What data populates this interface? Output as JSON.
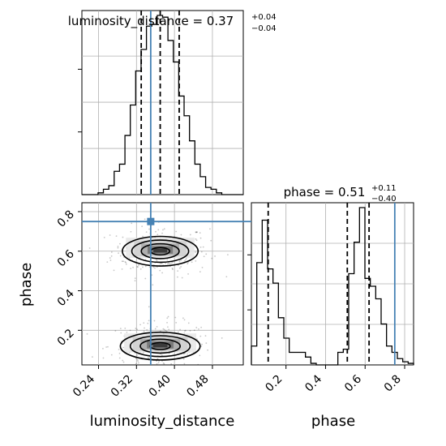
{
  "chart_data": {
    "type": "corner",
    "parameters": [
      "luminosity_distance",
      "phase"
    ],
    "truth_color": "#4682b4",
    "grid": true,
    "marginals": [
      {
        "name": "luminosity_distance",
        "title": {
          "prefix": "luminosity_distance = ",
          "value": "0.37",
          "plus": "+0.04",
          "minus": "−0.04"
        },
        "xlabel": "luminosity_distance",
        "xlim": [
          0.205,
          0.545
        ],
        "xticks": [
          "0.24",
          "0.32",
          "0.40",
          "0.48"
        ],
        "xtick_values": [
          0.24,
          0.32,
          0.4,
          0.48
        ],
        "hist_bins": [
          0.205,
          0.2163,
          0.2277,
          0.239,
          0.2503,
          0.2617,
          0.273,
          0.2843,
          0.2957,
          0.307,
          0.3183,
          0.3297,
          0.341,
          0.3523,
          0.3637,
          0.375,
          0.3863,
          0.3977,
          0.409,
          0.4203,
          0.4317,
          0.443,
          0.4543,
          0.4657,
          0.477,
          0.4883,
          0.4997,
          0.511,
          0.5223,
          0.5337,
          0.545
        ],
        "hist_counts": [
          0,
          0,
          0,
          0.01,
          0.03,
          0.05,
          0.13,
          0.17,
          0.33,
          0.5,
          0.69,
          0.81,
          0.94,
          0.95,
          1.0,
          0.99,
          0.86,
          0.74,
          0.55,
          0.44,
          0.3,
          0.17,
          0.1,
          0.04,
          0.03,
          0.01,
          0,
          0,
          0,
          0
        ],
        "quantiles": [
          0.33,
          0.37,
          0.41
        ],
        "truth": 0.35
      },
      {
        "name": "phase",
        "title": {
          "prefix": "phase = ",
          "value": "0.51",
          "plus": "+0.11",
          "minus": "−0.40"
        },
        "xlabel": "phase",
        "xlim": [
          0.025,
          0.845
        ],
        "xticks": [
          "0.2",
          "0.4",
          "0.6",
          "0.8"
        ],
        "xtick_values": [
          0.2,
          0.4,
          0.6,
          0.8
        ],
        "hist_bins": [
          0.025,
          0.0523,
          0.0797,
          0.107,
          0.1343,
          0.1617,
          0.189,
          0.2163,
          0.2437,
          0.271,
          0.2983,
          0.3257,
          0.353,
          0.3803,
          0.4077,
          0.435,
          0.4623,
          0.4897,
          0.517,
          0.5443,
          0.5717,
          0.599,
          0.6263,
          0.6537,
          0.681,
          0.7083,
          0.7357,
          0.763,
          0.7903,
          0.8177,
          0.845
        ],
        "hist_counts": [
          0.12,
          0.65,
          0.92,
          0.61,
          0.52,
          0.3,
          0.17,
          0.08,
          0.08,
          0.08,
          0.05,
          0.01,
          0,
          0,
          0,
          0,
          0.08,
          0.1,
          0.58,
          0.78,
          1.0,
          0.55,
          0.5,
          0.42,
          0.26,
          0.12,
          0.08,
          0.04,
          0.02,
          0.01
        ],
        "quantiles": [
          0.11,
          0.51,
          0.62
        ],
        "truth": 0.75
      }
    ],
    "joint": {
      "x": "luminosity_distance",
      "y": "phase",
      "xlim": [
        0.205,
        0.545
      ],
      "ylim": [
        0.025,
        0.845
      ],
      "yticks": [
        "0.2",
        "0.4",
        "0.6",
        "0.8"
      ],
      "ytick_values": [
        0.2,
        0.4,
        0.6,
        0.8
      ],
      "ylabel": "phase",
      "truth_point": [
        0.35,
        0.75
      ],
      "modes": [
        {
          "cx": 0.37,
          "cy": 0.6,
          "sx": 0.038,
          "sy": 0.048
        },
        {
          "cx": 0.37,
          "cy": 0.12,
          "sx": 0.04,
          "sy": 0.045
        }
      ],
      "contour_levels_sigma": [
        0.5,
        1.0,
        1.5,
        2.0
      ]
    }
  }
}
